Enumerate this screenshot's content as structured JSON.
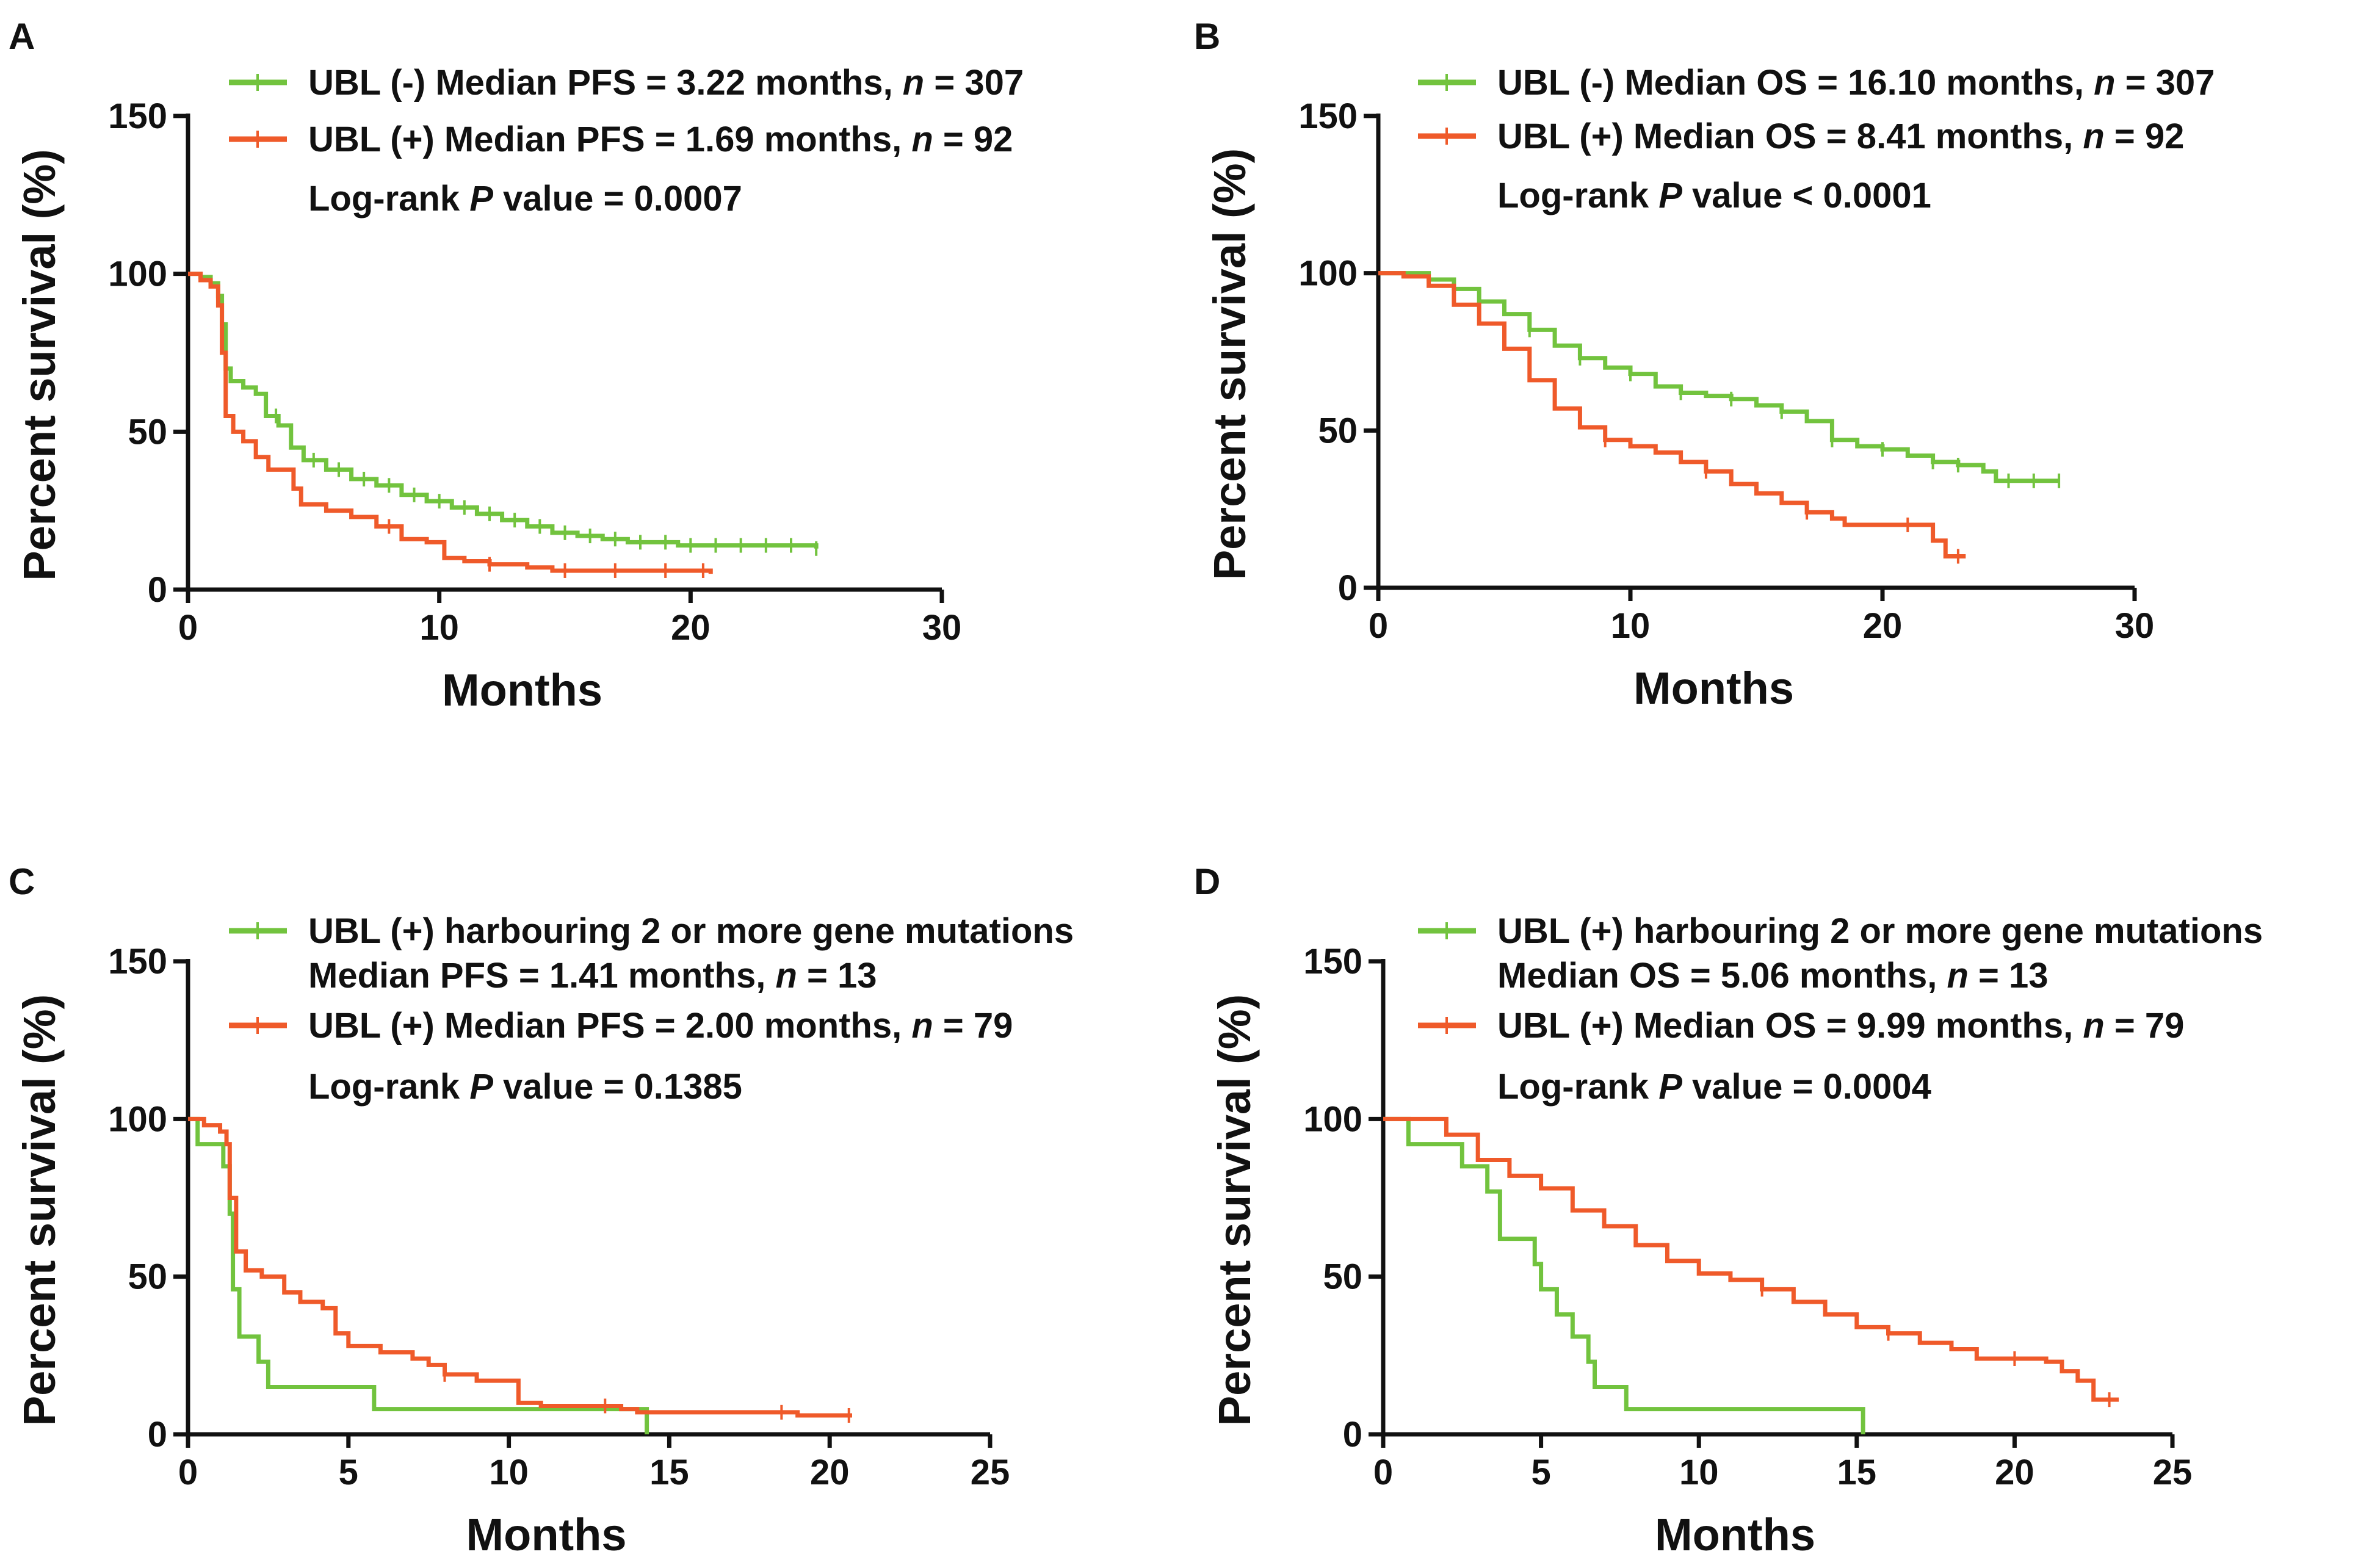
{
  "figure": {
    "colors": {
      "green": "#72c33e",
      "red": "#ef5a2a",
      "axis": "#111111"
    }
  },
  "chart_data": [
    {
      "type": "line",
      "panel": "A",
      "xlabel": "Months",
      "ylabel": "Percent survival (%)",
      "xlim": [
        0,
        30
      ],
      "xticks": [
        0,
        10,
        20,
        30
      ],
      "ylim": [
        0,
        150
      ],
      "yticks": [
        0,
        50,
        100,
        150
      ],
      "legend": [
        {
          "color": "green",
          "parts": [
            {
              "t": "UBL (-) Median PFS = 3.22 months, "
            },
            {
              "t": "n",
              "i": true
            },
            {
              "t": " = 307"
            }
          ]
        },
        {
          "color": "red",
          "parts": [
            {
              "t": "UBL (+) Median PFS = 1.69 months, "
            },
            {
              "t": "n",
              "i": true
            },
            {
              "t": " = 92"
            }
          ]
        }
      ],
      "annotation": [
        {
          "t": "Log-rank "
        },
        {
          "t": "P",
          "i": true
        },
        {
          "t": " value = 0.0007"
        }
      ],
      "series": [
        {
          "name": "UBL (-)",
          "color": "green",
          "points": [
            [
              0,
              100
            ],
            [
              0.5,
              99
            ],
            [
              0.9,
              97
            ],
            [
              1.2,
              93
            ],
            [
              1.35,
              84
            ],
            [
              1.5,
              70
            ],
            [
              1.7,
              66
            ],
            [
              2.2,
              64
            ],
            [
              2.7,
              62
            ],
            [
              3.1,
              55
            ],
            [
              3.6,
              52
            ],
            [
              4.1,
              45
            ],
            [
              4.6,
              41
            ],
            [
              5.5,
              38
            ],
            [
              6.5,
              35
            ],
            [
              7.5,
              33
            ],
            [
              8.5,
              30
            ],
            [
              9.5,
              28
            ],
            [
              10.5,
              26
            ],
            [
              11.5,
              24
            ],
            [
              12.5,
              22
            ],
            [
              13.5,
              20
            ],
            [
              14.5,
              18
            ],
            [
              15.5,
              17
            ],
            [
              16.5,
              16
            ],
            [
              17.5,
              15
            ],
            [
              18.5,
              15
            ],
            [
              19.5,
              14
            ],
            [
              25,
              13
            ]
          ],
          "censor_x": [
            3.5,
            5,
            6,
            7,
            8,
            9,
            10,
            11,
            12,
            13,
            14,
            15,
            16,
            17,
            18,
            19,
            20,
            21,
            22,
            23,
            24,
            25
          ]
        },
        {
          "name": "UBL (+)",
          "color": "red",
          "points": [
            [
              0,
              100
            ],
            [
              0.5,
              98
            ],
            [
              0.9,
              96
            ],
            [
              1.2,
              90
            ],
            [
              1.35,
              75
            ],
            [
              1.5,
              55
            ],
            [
              1.8,
              50
            ],
            [
              2.2,
              47
            ],
            [
              2.7,
              42
            ],
            [
              3.2,
              38
            ],
            [
              4.2,
              32
            ],
            [
              4.5,
              27
            ],
            [
              5.5,
              25
            ],
            [
              6.5,
              23
            ],
            [
              7.5,
              20
            ],
            [
              8.5,
              16
            ],
            [
              9.5,
              15
            ],
            [
              10.2,
              10
            ],
            [
              11,
              9
            ],
            [
              12,
              8
            ],
            [
              13.5,
              7
            ],
            [
              14.5,
              6
            ],
            [
              19.5,
              6
            ],
            [
              20.8,
              5
            ]
          ],
          "censor_x": [
            8,
            12,
            15,
            17,
            19,
            20.5
          ]
        }
      ]
    },
    {
      "type": "line",
      "panel": "B",
      "xlabel": "Months",
      "ylabel": "Percent survival (%)",
      "xlim": [
        0,
        30
      ],
      "xticks": [
        0,
        10,
        20,
        30
      ],
      "ylim": [
        0,
        150
      ],
      "yticks": [
        0,
        50,
        100,
        150
      ],
      "legend": [
        {
          "color": "green",
          "parts": [
            {
              "t": "UBL (-) Median OS = 16.10 months, "
            },
            {
              "t": "n",
              "i": true
            },
            {
              "t": " = 307"
            }
          ]
        },
        {
          "color": "red",
          "parts": [
            {
              "t": "UBL (+) Median OS = 8.41 months, "
            },
            {
              "t": "n",
              "i": true
            },
            {
              "t": " = 92"
            }
          ]
        }
      ],
      "annotation": [
        {
          "t": "Log-rank "
        },
        {
          "t": "P",
          "i": true
        },
        {
          "t": " value < 0.0001"
        }
      ],
      "series": [
        {
          "name": "UBL (-)",
          "color": "green",
          "points": [
            [
              0,
              100
            ],
            [
              1,
              100
            ],
            [
              2,
              98
            ],
            [
              3,
              95
            ],
            [
              4,
              91
            ],
            [
              5,
              87
            ],
            [
              6,
              82
            ],
            [
              7,
              77
            ],
            [
              8,
              73
            ],
            [
              9,
              70
            ],
            [
              10,
              68
            ],
            [
              11,
              64
            ],
            [
              12,
              62
            ],
            [
              13,
              61
            ],
            [
              14,
              60
            ],
            [
              15,
              58
            ],
            [
              16,
              56
            ],
            [
              17,
              53
            ],
            [
              18,
              47
            ],
            [
              19,
              45
            ],
            [
              20,
              44
            ],
            [
              21,
              42
            ],
            [
              22,
              40
            ],
            [
              23,
              39
            ],
            [
              24,
              37
            ],
            [
              24.5,
              34
            ],
            [
              27,
              34
            ]
          ],
          "censor_x": [
            2,
            4,
            6,
            8,
            10,
            12,
            14,
            16,
            18,
            20,
            22,
            23,
            25,
            26,
            27
          ]
        },
        {
          "name": "UBL (+)",
          "color": "red",
          "points": [
            [
              0,
              100
            ],
            [
              1,
              99
            ],
            [
              2,
              96
            ],
            [
              3,
              90
            ],
            [
              4,
              84
            ],
            [
              5,
              76
            ],
            [
              6,
              66
            ],
            [
              7,
              57
            ],
            [
              8,
              51
            ],
            [
              9,
              47
            ],
            [
              10,
              45
            ],
            [
              11,
              43
            ],
            [
              12,
              40
            ],
            [
              13,
              37
            ],
            [
              14,
              33
            ],
            [
              15,
              30
            ],
            [
              16,
              27
            ],
            [
              17,
              24
            ],
            [
              18,
              22
            ],
            [
              18.5,
              20
            ],
            [
              21,
              20
            ],
            [
              22,
              15
            ],
            [
              22.5,
              10
            ],
            [
              23.3,
              10
            ]
          ],
          "censor_x": [
            9,
            13,
            17,
            21,
            23
          ]
        }
      ]
    },
    {
      "type": "line",
      "panel": "C",
      "xlabel": "Months",
      "ylabel": "Percent survival (%)",
      "xlim": [
        0,
        25
      ],
      "xticks": [
        0,
        5,
        10,
        15,
        20,
        25
      ],
      "ylim": [
        0,
        150
      ],
      "yticks": [
        0,
        50,
        100,
        150
      ],
      "legend": [
        {
          "color": "green",
          "parts": [
            {
              "t": "UBL (+) harbouring 2 or more gene mutations"
            }
          ],
          "sub": [
            {
              "t": "Median PFS = 1.41 months, "
            },
            {
              "t": "n",
              "i": true
            },
            {
              "t": " = 13"
            }
          ]
        },
        {
          "color": "red",
          "parts": [
            {
              "t": "UBL (+) Median PFS = 2.00 months, "
            },
            {
              "t": "n",
              "i": true
            },
            {
              "t": " = 79"
            }
          ]
        }
      ],
      "annotation": [
        {
          "t": "Log-rank "
        },
        {
          "t": "P",
          "i": true
        },
        {
          "t": " value = 0.1385"
        }
      ],
      "series": [
        {
          "name": "UBL (+) harbouring 2 or more gene mutations",
          "color": "green",
          "points": [
            [
              0,
              100
            ],
            [
              0.3,
              92
            ],
            [
              1.1,
              85
            ],
            [
              1.3,
              70
            ],
            [
              1.4,
              46
            ],
            [
              1.6,
              31
            ],
            [
              2.2,
              23
            ],
            [
              2.5,
              15
            ],
            [
              5.8,
              15
            ],
            [
              5.8,
              8
            ],
            [
              14.3,
              8
            ],
            [
              14.3,
              0
            ]
          ],
          "censor_x": []
        },
        {
          "name": "UBL (+)",
          "color": "red",
          "points": [
            [
              0,
              100
            ],
            [
              0.5,
              98
            ],
            [
              1,
              96
            ],
            [
              1.2,
              92
            ],
            [
              1.3,
              75
            ],
            [
              1.5,
              58
            ],
            [
              1.8,
              52
            ],
            [
              2.3,
              50
            ],
            [
              3,
              45
            ],
            [
              3.5,
              42
            ],
            [
              4.2,
              40
            ],
            [
              4.6,
              32
            ],
            [
              5,
              28
            ],
            [
              6,
              26
            ],
            [
              7,
              24
            ],
            [
              7.5,
              22
            ],
            [
              8,
              19
            ],
            [
              9,
              17
            ],
            [
              10.3,
              10
            ],
            [
              11,
              9
            ],
            [
              13.5,
              8
            ],
            [
              14,
              7
            ],
            [
              19,
              6
            ],
            [
              20.7,
              6
            ]
          ],
          "censor_x": [
            8,
            13,
            18.5,
            20.6
          ]
        }
      ]
    },
    {
      "type": "line",
      "panel": "D",
      "xlabel": "Months",
      "ylabel": "Percent survival (%)",
      "xlim": [
        0,
        25
      ],
      "xticks": [
        0,
        5,
        10,
        15,
        20,
        25
      ],
      "ylim": [
        0,
        150
      ],
      "yticks": [
        0,
        50,
        100,
        150
      ],
      "legend": [
        {
          "color": "green",
          "parts": [
            {
              "t": "UBL (+) harbouring 2 or more gene mutations"
            }
          ],
          "sub": [
            {
              "t": "Median OS = 5.06 months, "
            },
            {
              "t": "n",
              "i": true
            },
            {
              "t": " = 13"
            }
          ]
        },
        {
          "color": "red",
          "parts": [
            {
              "t": "UBL (+) Median OS = 9.99 months, "
            },
            {
              "t": "n",
              "i": true
            },
            {
              "t": " = 79"
            }
          ]
        }
      ],
      "annotation": [
        {
          "t": "Log-rank "
        },
        {
          "t": "P",
          "i": true
        },
        {
          "t": " value = 0.0004"
        }
      ],
      "series": [
        {
          "name": "UBL (+) harbouring 2 or more gene mutations",
          "color": "green",
          "points": [
            [
              0,
              100
            ],
            [
              0.8,
              92
            ],
            [
              2.5,
              85
            ],
            [
              3.3,
              77
            ],
            [
              3.7,
              62
            ],
            [
              4.8,
              54
            ],
            [
              5,
              46
            ],
            [
              5.5,
              38
            ],
            [
              6,
              31
            ],
            [
              6.5,
              23
            ],
            [
              6.7,
              15
            ],
            [
              7.7,
              8
            ],
            [
              15.2,
              8
            ],
            [
              15.2,
              0
            ]
          ],
          "censor_x": []
        },
        {
          "name": "UBL (+)",
          "color": "red",
          "points": [
            [
              0,
              100
            ],
            [
              1,
              100
            ],
            [
              2,
              95
            ],
            [
              3,
              87
            ],
            [
              4,
              82
            ],
            [
              5,
              78
            ],
            [
              6,
              71
            ],
            [
              7,
              66
            ],
            [
              8,
              60
            ],
            [
              9,
              55
            ],
            [
              10,
              51
            ],
            [
              11,
              49
            ],
            [
              12,
              46
            ],
            [
              13,
              42
            ],
            [
              14,
              38
            ],
            [
              15,
              34
            ],
            [
              16,
              32
            ],
            [
              17,
              29
            ],
            [
              18,
              27
            ],
            [
              18.8,
              24
            ],
            [
              21,
              23
            ],
            [
              21.5,
              20
            ],
            [
              22,
              17
            ],
            [
              22.5,
              11
            ],
            [
              23.3,
              11
            ]
          ],
          "censor_x": [
            12,
            16,
            20,
            23
          ]
        }
      ]
    }
  ]
}
